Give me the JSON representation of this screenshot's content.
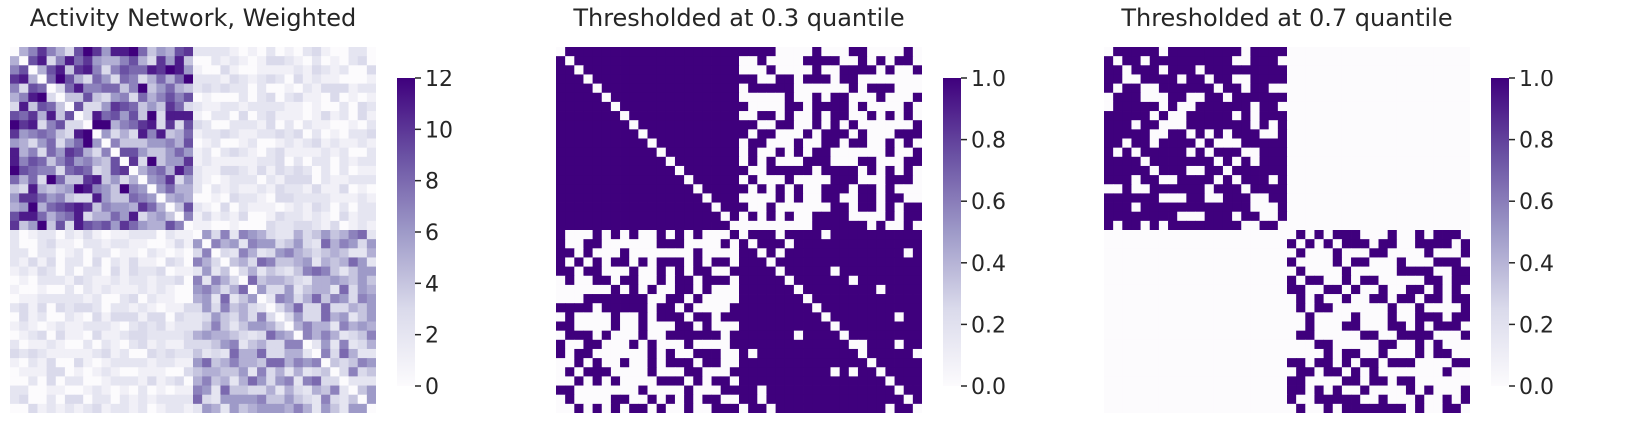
{
  "chart_data": [
    {
      "type": "heatmap",
      "title": "Activity Network, Weighted",
      "grid_size": [
        40,
        40
      ],
      "value_kind": "weighted",
      "blocks": [
        {
          "rows": [
            0,
            19
          ],
          "cols": [
            0,
            19
          ],
          "typical_range": [
            3,
            12
          ]
        },
        {
          "rows": [
            20,
            39
          ],
          "cols": [
            20,
            39
          ],
          "typical_range": [
            2,
            8
          ]
        },
        {
          "rows": [
            0,
            19
          ],
          "cols": [
            20,
            39
          ],
          "typical_range": [
            0,
            3
          ]
        },
        {
          "rows": [
            20,
            39
          ],
          "cols": [
            0,
            19
          ],
          "typical_range": [
            0,
            3
          ]
        }
      ],
      "diagonal": "low",
      "colorbar": {
        "min": 0,
        "max": 12,
        "ticks": [
          "0",
          "2",
          "4",
          "6",
          "8",
          "10",
          "12"
        ]
      },
      "colormap": [
        "#fcfbfd",
        "#dadaeb",
        "#9e9ac8",
        "#6a51a3",
        "#3f007d"
      ],
      "grid": false
    },
    {
      "type": "heatmap",
      "title": "Thresholded at 0.3 quantile",
      "grid_size": [
        40,
        40
      ],
      "value_kind": "binary",
      "approx_fill_fraction": {
        "within_block": 0.98,
        "between_block": 0.55
      },
      "diagonal": 0,
      "colorbar": {
        "min": 0.0,
        "max": 1.0,
        "ticks": [
          "0.0",
          "0.2",
          "0.4",
          "0.6",
          "0.8",
          "1.0"
        ]
      },
      "colormap": [
        "#fcfbfd",
        "#dadaeb",
        "#9e9ac8",
        "#6a51a3",
        "#3f007d"
      ],
      "grid": false
    },
    {
      "type": "heatmap",
      "title": "Thresholded at 0.7 quantile",
      "grid_size": [
        40,
        40
      ],
      "value_kind": "binary",
      "approx_fill_fraction": {
        "block_top_left": 0.72,
        "block_bottom_right": 0.32,
        "between_block": 0.03
      },
      "diagonal": 0,
      "colorbar": {
        "min": 0.0,
        "max": 1.0,
        "ticks": [
          "0.0",
          "0.2",
          "0.4",
          "0.6",
          "0.8",
          "1.0"
        ]
      },
      "colormap": [
        "#fcfbfd",
        "#dadaeb",
        "#9e9ac8",
        "#6a51a3",
        "#3f007d"
      ],
      "grid": false
    }
  ]
}
